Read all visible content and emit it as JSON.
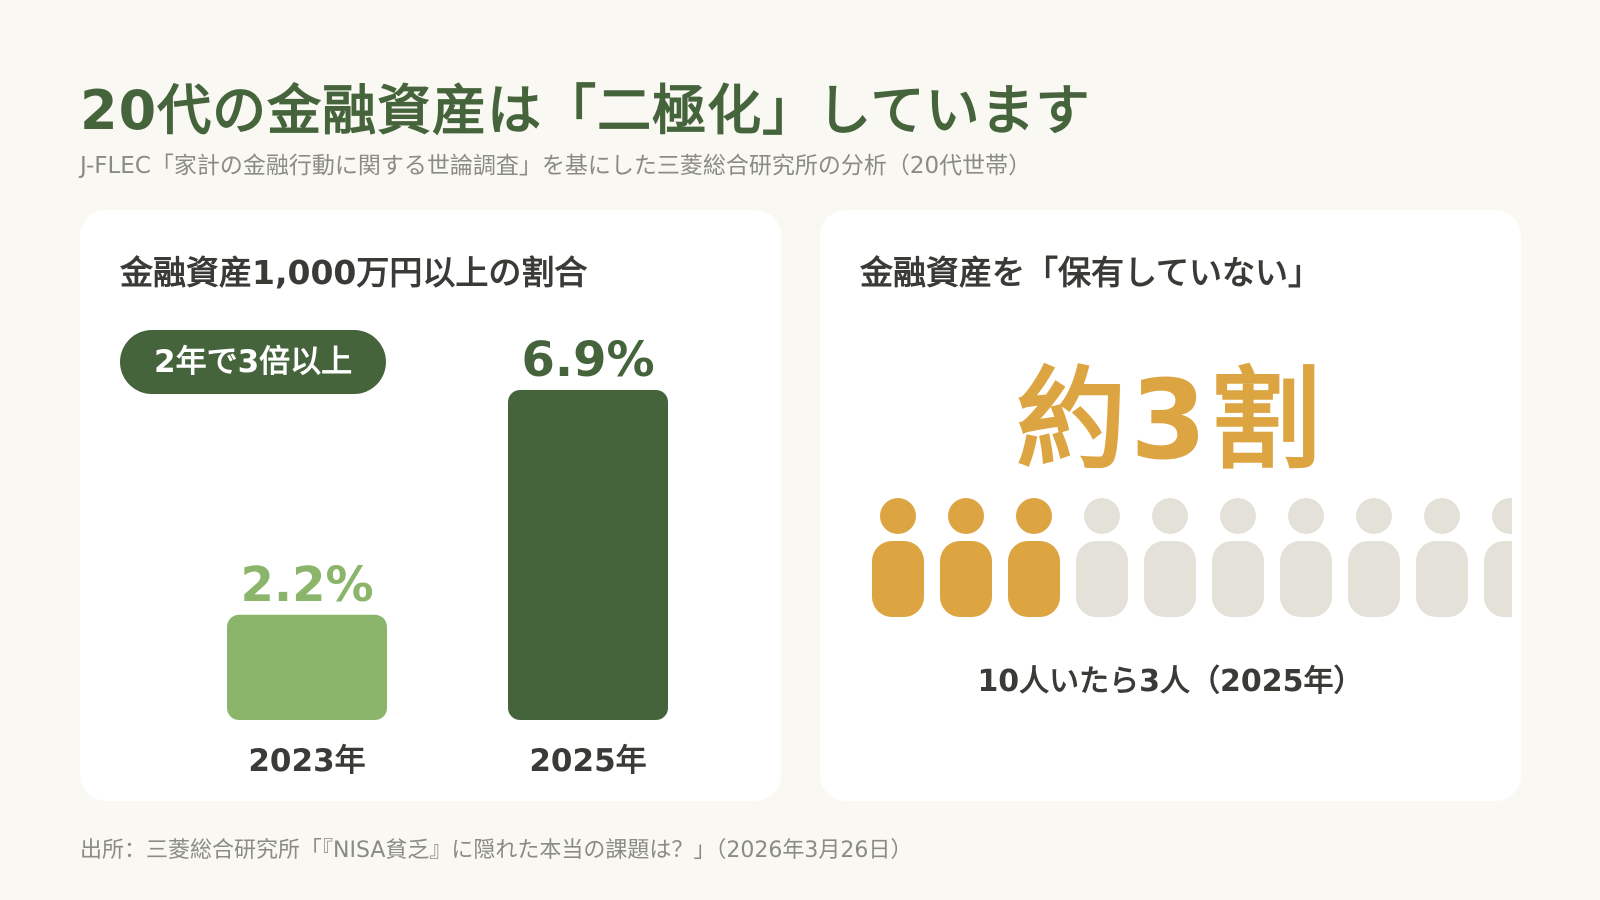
{
  "title": "20代の金融資産は「二極化」しています",
  "subtitle": "J-FLEC「家計の金融行動に関する世論調査」を基にした三菱総合研究所の分析（20代世帯）",
  "colors": {
    "accent_dark_green": "#46643c",
    "light_green": "#8bb56a",
    "gold": "#dca542",
    "inactive_gray": "#e3e1d8",
    "background": "#faf8f3"
  },
  "left_card": {
    "title": "金融資産1,000万円以上の割合",
    "badge": "2年で3倍以上"
  },
  "right_card": {
    "title": "金融資産を「保有していない」",
    "big_stat": "約3割",
    "caption": "10人いたら3人（2025年）",
    "icon": "person-icon",
    "people_total": 10,
    "people_highlighted": 3
  },
  "source": "出所：三菱総合研究所「『NISA貧乏』に隠れた本当の課題は？」（2026年3月26日）",
  "chart_data": [
    {
      "type": "bar",
      "title": "金融資産1,000万円以上の割合",
      "categories": [
        "2023年",
        "2025年"
      ],
      "values": [
        2.2,
        6.9
      ],
      "value_labels": [
        "2.2%",
        "6.9%"
      ],
      "bar_colors": [
        "#8bb56a",
        "#46643c"
      ],
      "label_colors": [
        "#8bb56a",
        "#46643c"
      ],
      "ylim": [
        0,
        6.9
      ],
      "grid": false
    }
  ]
}
